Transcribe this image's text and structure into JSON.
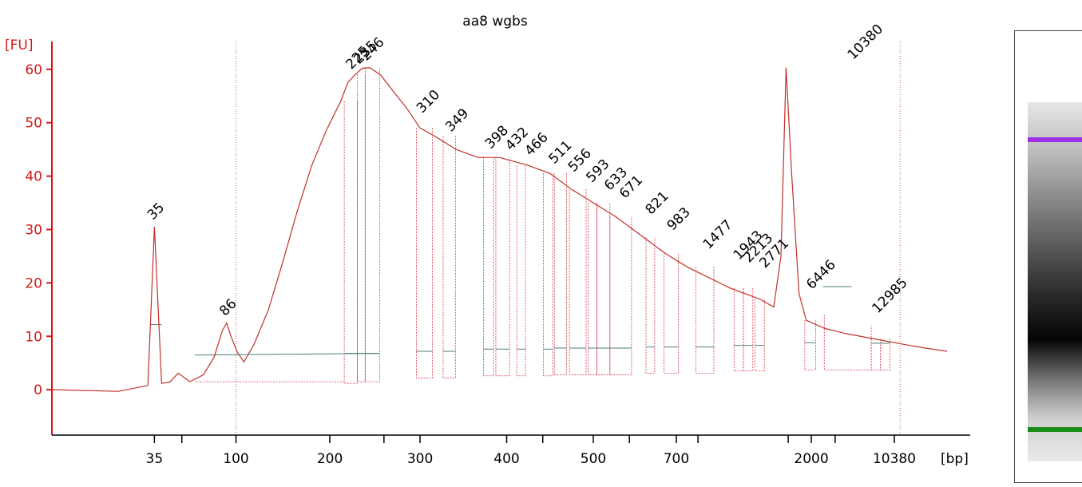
{
  "chart_data": {
    "type": "line",
    "title": "aa8 wgbs",
    "y_unit": "[FU]",
    "x_unit": "[bp]",
    "ylim": [
      -8.5,
      67
    ],
    "yticks": [
      0,
      10,
      20,
      30,
      40,
      50,
      60
    ],
    "xticks": [
      "35",
      "100",
      "200",
      "300",
      "400",
      "500",
      "700",
      "2000",
      "10380"
    ],
    "colors": {
      "trace": "#c0302a",
      "axis": "#d11a1a",
      "baseline": "#4a7f7a",
      "lower_marker": "#1a8c1a",
      "upper_marker": "#9b30e8"
    },
    "series": [
      {
        "values": [
          [
            0,
            0
          ],
          [
            9.2,
            -0.3
          ],
          [
            13.3,
            0.8
          ],
          [
            14.2,
            30.5
          ],
          [
            15.2,
            1.2
          ],
          [
            16.3,
            1.4
          ],
          [
            17.5,
            3.1
          ],
          [
            19.1,
            1.5
          ],
          [
            21,
            2.8
          ],
          [
            22.5,
            6.2
          ],
          [
            23.6,
            11
          ],
          [
            24.2,
            12.5
          ],
          [
            24.8,
            10
          ],
          [
            25.7,
            7
          ],
          [
            26.6,
            5.2
          ],
          [
            28,
            8.5
          ],
          [
            30,
            15
          ],
          [
            32,
            24
          ],
          [
            34,
            33.5
          ],
          [
            36,
            42
          ],
          [
            38,
            48.5
          ],
          [
            40,
            54
          ],
          [
            41,
            57.5
          ],
          [
            42,
            59
          ],
          [
            43,
            60.2
          ],
          [
            44,
            60.3
          ],
          [
            45.5,
            59
          ],
          [
            47.5,
            55.5
          ],
          [
            49,
            53
          ],
          [
            51,
            49
          ],
          [
            53,
            47.5
          ],
          [
            56,
            45
          ],
          [
            59,
            43.5
          ],
          [
            62,
            43.5
          ],
          [
            66,
            42
          ],
          [
            69,
            40.5
          ],
          [
            72,
            37.5
          ],
          [
            75,
            35
          ],
          [
            78,
            32.5
          ],
          [
            82,
            28.5
          ],
          [
            85,
            25.5
          ],
          [
            88,
            23
          ],
          [
            91,
            21
          ],
          [
            94,
            19
          ],
          [
            98,
            17
          ],
          [
            100,
            15.5
          ],
          [
            101,
            25
          ],
          [
            101.7,
            60.3
          ],
          [
            102.5,
            40
          ],
          [
            103.5,
            18
          ],
          [
            104.5,
            13
          ],
          [
            107,
            11.5
          ],
          [
            110,
            10.5
          ],
          [
            114,
            9.5
          ],
          [
            118,
            8.5
          ],
          [
            121,
            7.8
          ],
          [
            124,
            7.2
          ]
        ]
      }
    ],
    "peaks": [
      {
        "label": "35",
        "x": 14.2,
        "y": 30.5,
        "color": "#1a8c1a",
        "kind": "lower_marker"
      },
      {
        "label": "86",
        "x": 24.2,
        "y": 12.5
      },
      {
        "label": "225",
        "x": 41.7,
        "y": 58.7
      },
      {
        "label": "235",
        "x": 42.8,
        "y": 59.7
      },
      {
        "label": "246",
        "x": 43.8,
        "y": 60.3
      },
      {
        "label": "310",
        "x": 51.5,
        "y": 50.5
      },
      {
        "label": "349",
        "x": 55.5,
        "y": 47.0
      },
      {
        "label": "398",
        "x": 61,
        "y": 43.8
      },
      {
        "label": "432",
        "x": 63.8,
        "y": 43.5
      },
      {
        "label": "466",
        "x": 66.5,
        "y": 42.5
      },
      {
        "label": "511",
        "x": 69.8,
        "y": 41.0
      },
      {
        "label": "556",
        "x": 72.5,
        "y": 39.5
      },
      {
        "label": "593",
        "x": 75,
        "y": 37.5
      },
      {
        "label": "633",
        "x": 77.5,
        "y": 36.0
      },
      {
        "label": "671",
        "x": 79.6,
        "y": 34.5
      },
      {
        "label": "821",
        "x": 83.2,
        "y": 31.5
      },
      {
        "label": "983",
        "x": 86.2,
        "y": 28.5
      },
      {
        "label": "1477",
        "x": 91.2,
        "y": 25.0
      },
      {
        "label": "1943",
        "x": 95.4,
        "y": 23.0
      },
      {
        "label": "2213",
        "x": 96.8,
        "y": 22.5
      },
      {
        "label": "2771",
        "x": 99,
        "y": 21.5
      },
      {
        "label": "6446",
        "x": 105.5,
        "y": 17.5
      },
      {
        "label": "10380",
        "x": 111.2,
        "y": 60.5,
        "color": "#9b30e8",
        "kind": "upper_marker"
      },
      {
        "label": "12985",
        "x": 114.6,
        "y": 13.0
      }
    ]
  }
}
